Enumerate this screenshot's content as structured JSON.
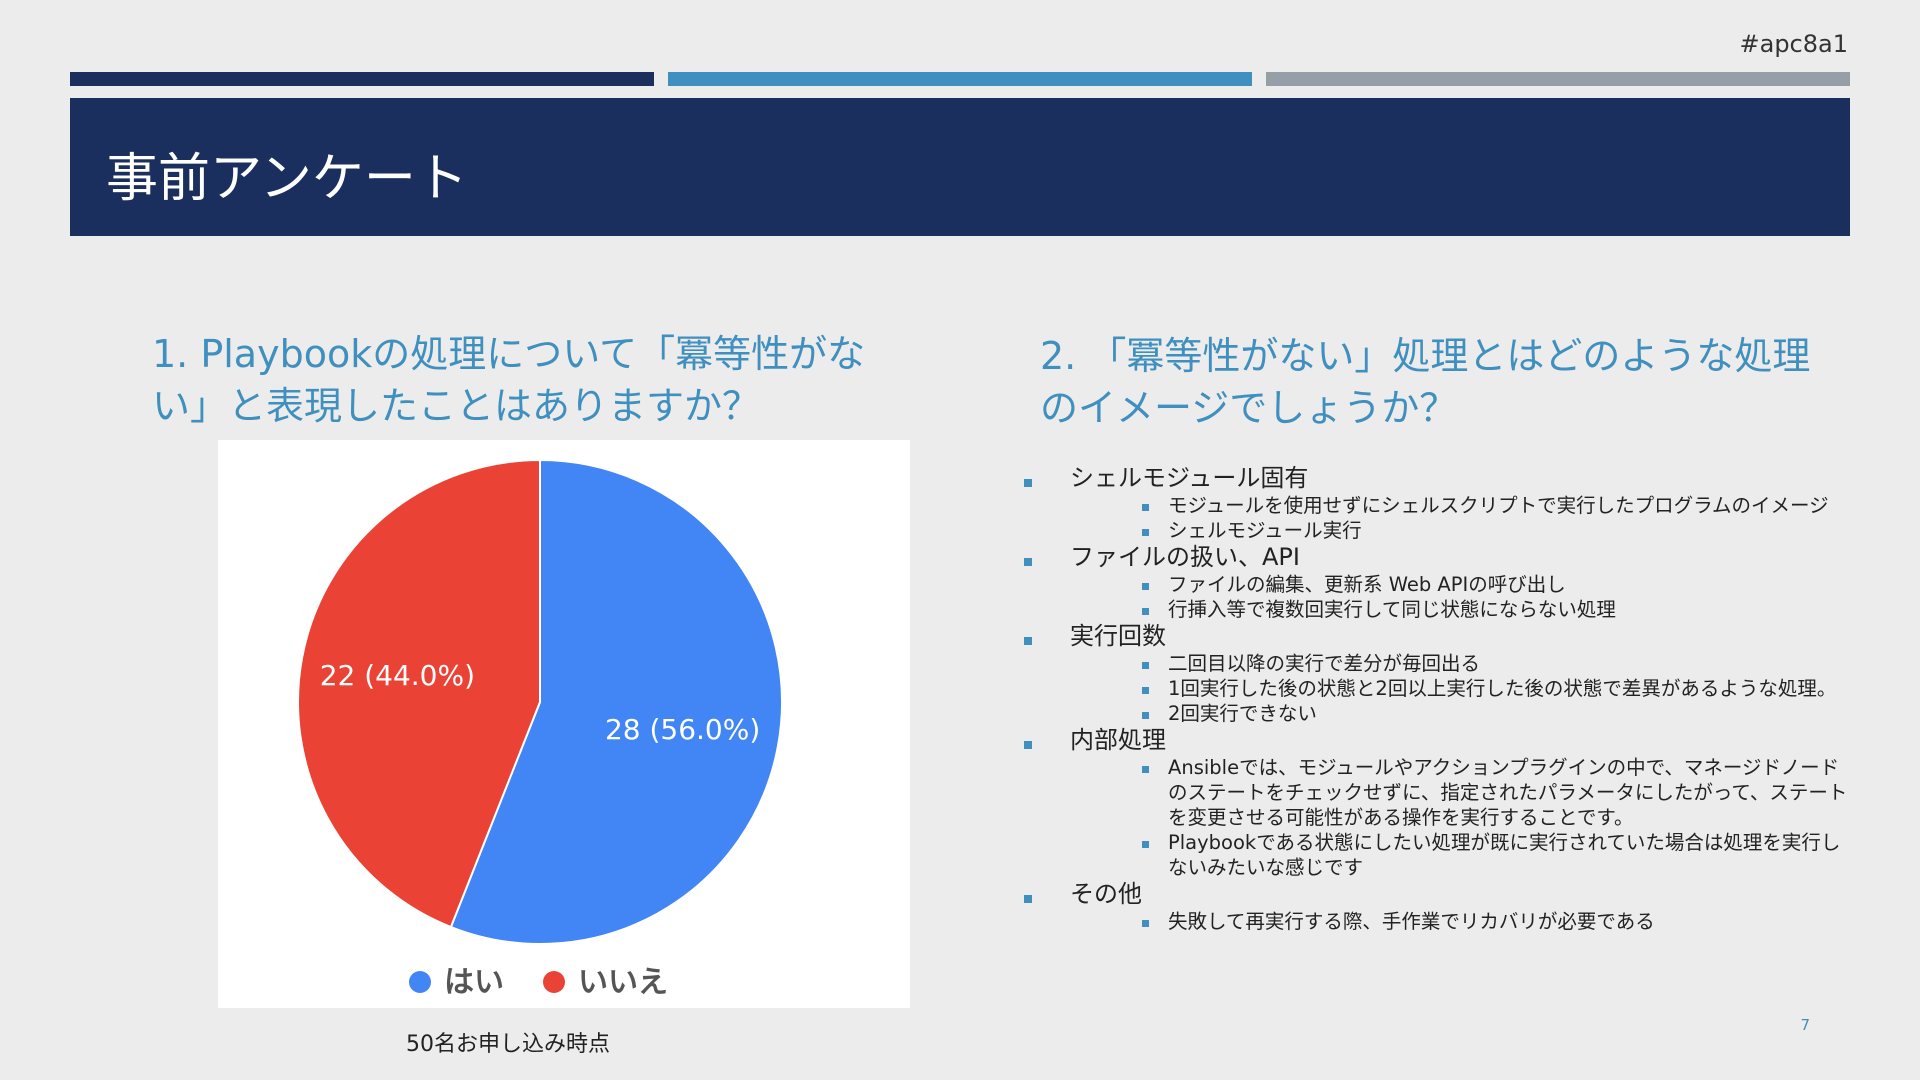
{
  "hashtag": "#apc8a1",
  "title": "事前アンケート",
  "q1": "1. Playbookの処理について「冪等性がない」と表現したことはありますか？",
  "q2": "2. 「冪等性がない」処理とはどのような処理のイメージでしょうか？",
  "caption": "50名お申し込み時点",
  "page_number": "7",
  "colors": {
    "header": "#1a2f5d",
    "accent": "#3f8fbf",
    "gray": "#969fa7",
    "yes": "#4285f4",
    "no": "#ea4335"
  },
  "answers": [
    {
      "label": "シェルモジュール固有",
      "subs": [
        "モジュールを使用せずにシェルスクリプトで実行したプログラムのイメージ",
        "シェルモジュール実行"
      ]
    },
    {
      "label": "ファイルの扱い、API",
      "subs": [
        "ファイルの編集、更新系 Web APIの呼び出し",
        "行挿入等で複数回実行して同じ状態にならない処理"
      ]
    },
    {
      "label": "実行回数",
      "subs": [
        "二回目以降の実行で差分が毎回出る",
        "1回実行した後の状態と2回以上実行した後の状態で差異があるような処理。",
        "2回実行できない"
      ]
    },
    {
      "label": "内部処理",
      "subs": [
        "Ansibleでは、モジュールやアクションプラグインの中で、マネージドノードのステートをチェックせずに、指定されたパラメータにしたがって、ステートを変更させる可能性がある操作を実行することです。",
        "Playbookである状態にしたい処理が既に実行されていた場合は処理を実行しないみたいな感じです"
      ]
    },
    {
      "label": "その他",
      "subs": [
        "失敗して再実行する際、手作業でリカバリが必要である"
      ]
    }
  ],
  "chart_data": {
    "type": "pie",
    "slices": [
      {
        "name": "はい",
        "value": 28,
        "label": "28 (56.0%)",
        "color": "#4285f4"
      },
      {
        "name": "いいえ",
        "value": 22,
        "label": "22 (44.0%)",
        "color": "#ea4335"
      }
    ],
    "legend_position": "bottom"
  }
}
